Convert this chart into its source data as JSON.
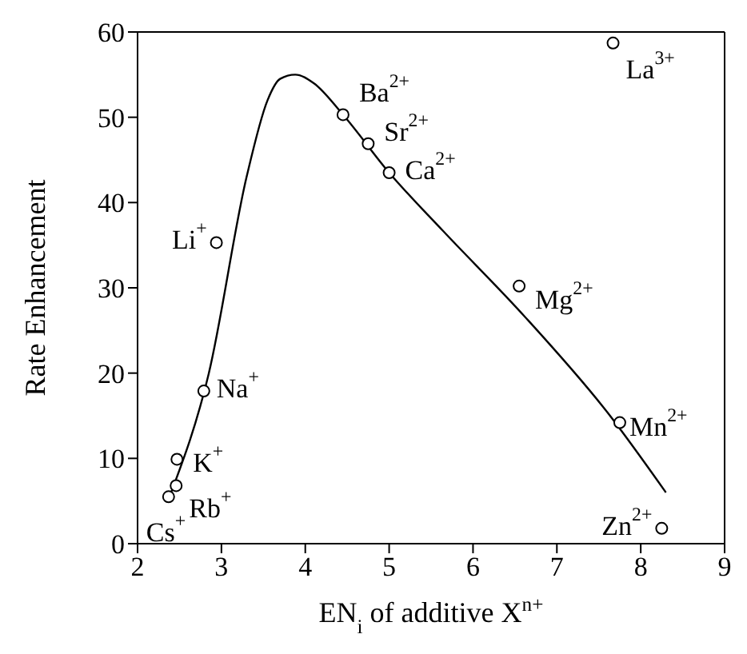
{
  "chart_data": {
    "type": "scatter",
    "xlabel": "EN$_{i}$ of additive X$^{n+}$",
    "ylabel": "Rate Enhancement",
    "xlim": [
      2,
      9
    ],
    "xticks": [
      2,
      3,
      4,
      5,
      6,
      7,
      8,
      9
    ],
    "ylim": [
      0,
      60
    ],
    "yticks": [
      0,
      10,
      20,
      30,
      40,
      50,
      60
    ],
    "grid": false,
    "series": [
      {
        "color": "#000000",
        "marker": "circle",
        "x": [
          2.37,
          2.46,
          2.47,
          2.79,
          2.94,
          4.45,
          4.75,
          5.0,
          6.55,
          7.67,
          7.75,
          8.25
        ],
        "values": [
          5.5,
          6.8,
          9.9,
          17.9,
          35.3,
          50.3,
          46.9,
          43.5,
          30.2,
          58.7,
          14.2,
          1.8
        ]
      },
      {
        "type": "line",
        "color": "#000000",
        "marker": "none",
        "x": [
          2.4,
          2.85,
          3.3,
          3.55,
          3.7,
          3.88,
          4.1,
          4.45,
          5.0,
          5.64,
          6.61,
          7.61,
          8.3
        ],
        "values": [
          6,
          20,
          43,
          52,
          54.5,
          55,
          54,
          50.3,
          43.5,
          36.7,
          26.7,
          15.3,
          6
        ]
      }
    ],
    "annotations": [
      {
        "text": "Cs$^{+}$",
        "x": 2.37,
        "y": 5.5
      },
      {
        "text": "Rb$^{+}$",
        "x": 2.46,
        "y": 6.8
      },
      {
        "text": "K$^{+}$",
        "x": 2.47,
        "y": 9.9
      },
      {
        "text": "Na$^{+}$",
        "x": 2.79,
        "y": 17.9
      },
      {
        "text": "Li$^{+}$",
        "x": 2.94,
        "y": 35.3
      },
      {
        "text": "Ba$^{2+}$",
        "x": 4.45,
        "y": 50.3
      },
      {
        "text": "Sr$^{2+}$",
        "x": 4.75,
        "y": 46.9
      },
      {
        "text": "Ca$^{2+}$",
        "x": 5.0,
        "y": 43.5
      },
      {
        "text": "Mg$^{2+}$",
        "x": 6.55,
        "y": 30.2
      },
      {
        "text": "La$^{3+}$",
        "x": 7.67,
        "y": 58.7
      },
      {
        "text": "Mn$^{2+}$",
        "x": 7.75,
        "y": 14.2
      },
      {
        "text": "Zn$^{2+}$",
        "x": 8.25,
        "y": 1.8
      }
    ]
  }
}
